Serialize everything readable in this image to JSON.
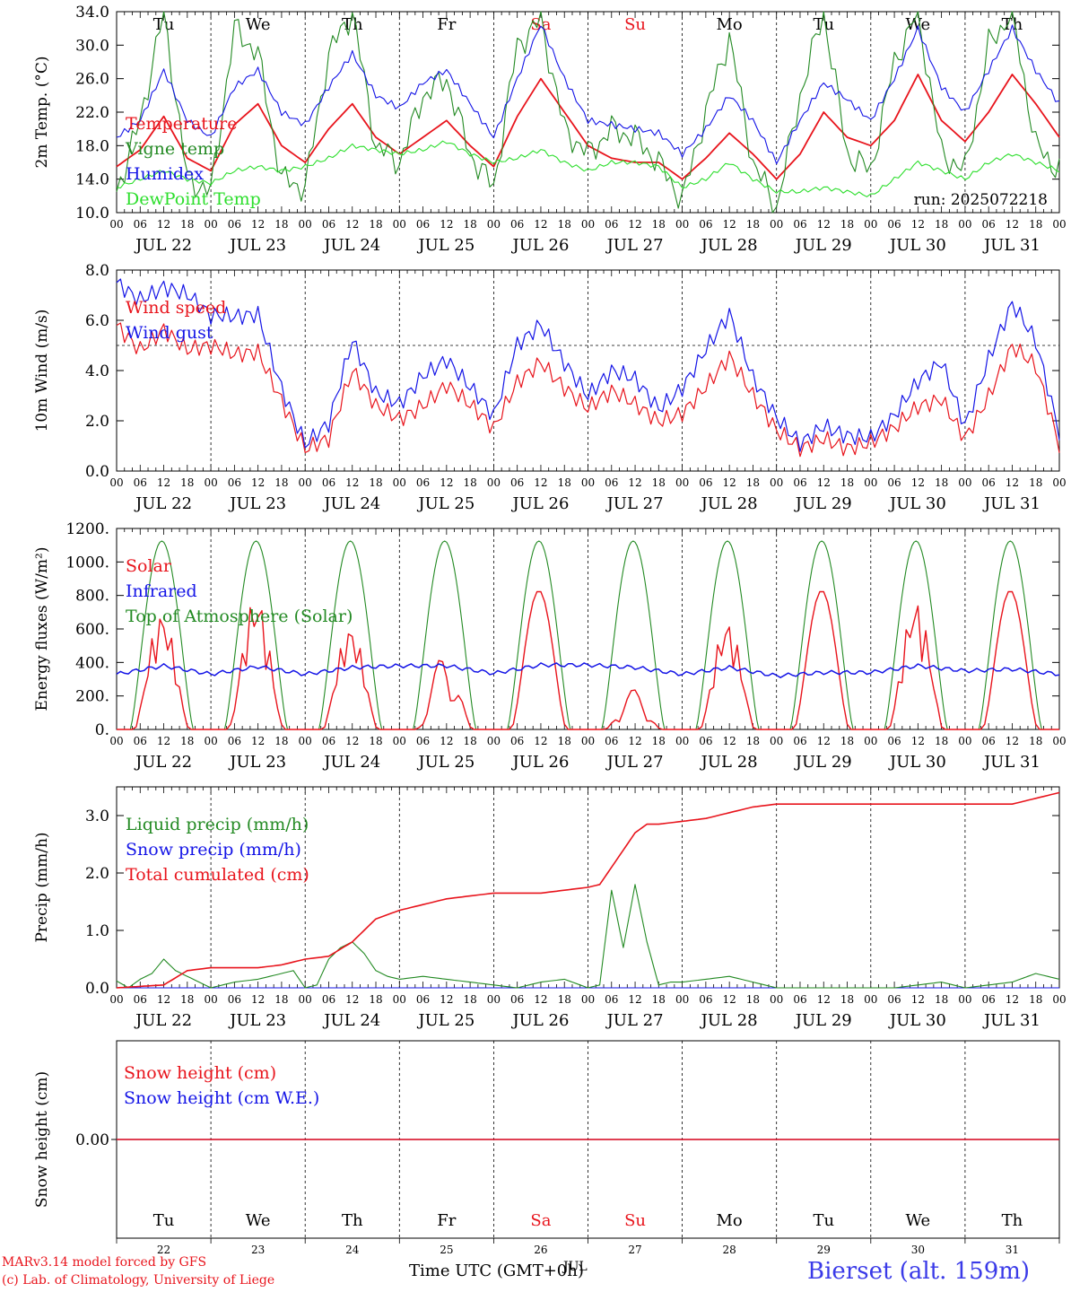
{
  "colors": {
    "red": "#e8141c",
    "darkgreen": "#238a23",
    "blue": "#1414e6",
    "lightgreen": "#2cde2c",
    "black": "#000000",
    "station": "#3a3ae8"
  },
  "header": {
    "run": "run: 2025072218"
  },
  "footer": {
    "model": "MARv3.14 model forced by GFS",
    "copyright": "(c) Lab. of Climatology, University of Liege",
    "time_label": "Time UTC (GMT+0h)",
    "month_overlap": "JUL",
    "station": "Bierset (alt. 159m)"
  },
  "days": {
    "weekday_labels": [
      "Tu",
      "We",
      "Th",
      "Fr",
      "Sa",
      "Su",
      "Mo",
      "Tu",
      "We",
      "Th"
    ],
    "weekend_flags": [
      false,
      false,
      false,
      false,
      true,
      true,
      false,
      false,
      false,
      false
    ],
    "date_labels": [
      "JUL 22",
      "JUL 23",
      "JUL 24",
      "JUL 25",
      "JUL 26",
      "JUL 27",
      "JUL 28",
      "JUL 29",
      "JUL 30",
      "JUL 31"
    ],
    "day_numbers": [
      "22",
      "23",
      "24",
      "25",
      "26",
      "27",
      "28",
      "29",
      "30",
      "31"
    ],
    "hour_labels": [
      "00",
      "06",
      "12",
      "18"
    ],
    "end_hour_label": "00"
  },
  "chart_data": [
    {
      "type": "line",
      "ylabel": "2m Temp. (°C)",
      "ylim": [
        10.0,
        34.0
      ],
      "yticks": [
        "10.0",
        "14.0",
        "18.0",
        "22.0",
        "26.0",
        "30.0",
        "34.0"
      ],
      "x_unit": "hours since Jul 22 00 UTC",
      "series": [
        {
          "name": "Temperature",
          "color": "red",
          "x": [
            0,
            6,
            12,
            18,
            24,
            30,
            36,
            42,
            48,
            54,
            60,
            66,
            72,
            78,
            84,
            90,
            96,
            102,
            108,
            114,
            120,
            126,
            132,
            138,
            144,
            150,
            156,
            162,
            168,
            174,
            180,
            186,
            192,
            198,
            204,
            210,
            216,
            222,
            228,
            234,
            240
          ],
          "y": [
            15.5,
            17.5,
            21.5,
            16.5,
            15,
            20.5,
            23,
            18,
            16,
            20,
            23,
            19,
            17,
            19,
            21,
            18,
            15.5,
            21.5,
            26,
            22,
            18,
            16.5,
            16,
            16,
            14,
            16.5,
            19.5,
            17,
            14,
            17,
            22,
            19,
            18,
            21,
            26.5,
            21,
            18.5,
            22,
            26.5,
            23,
            19
          ]
        },
        {
          "name": "Vigne temp",
          "color": "darkgreen",
          "x": [
            0,
            6,
            12,
            18,
            24,
            30,
            36,
            42,
            48,
            54,
            60,
            66,
            72,
            78,
            84,
            90,
            96,
            102,
            108,
            114,
            120,
            126,
            132,
            138,
            144,
            150,
            156,
            162,
            168,
            174,
            180,
            186,
            192,
            198,
            204,
            210,
            216,
            222,
            228,
            234,
            240
          ],
          "y": [
            12.5,
            21,
            34,
            14,
            12.5,
            32,
            29,
            14,
            13,
            29,
            34,
            18,
            16,
            24,
            26,
            17,
            13,
            30,
            33,
            20,
            17,
            20,
            19,
            16,
            11.5,
            22,
            31,
            16,
            10.5,
            24,
            34,
            17,
            15,
            28,
            34,
            17,
            15,
            30,
            34,
            18,
            15
          ]
        },
        {
          "name": "Humidex",
          "color": "blue",
          "x": [
            0,
            6,
            12,
            18,
            24,
            30,
            36,
            42,
            48,
            54,
            60,
            66,
            72,
            78,
            84,
            90,
            96,
            102,
            108,
            114,
            120,
            126,
            132,
            138,
            144,
            150,
            156,
            162,
            168,
            174,
            180,
            186,
            192,
            198,
            204,
            210,
            216,
            222,
            228,
            234,
            240
          ],
          "y": [
            19,
            21,
            27,
            21,
            19,
            25,
            27,
            22,
            20.5,
            25,
            29,
            24,
            22.5,
            25.5,
            27,
            23,
            19,
            26,
            32.5,
            26,
            21,
            20.5,
            20,
            19.5,
            17,
            20,
            24,
            21,
            16,
            21,
            25.5,
            23.5,
            21,
            26,
            32,
            25,
            22,
            27,
            32,
            27,
            23
          ]
        },
        {
          "name": "DewPoint Temp",
          "color": "lightgreen",
          "x": [
            0,
            6,
            12,
            18,
            24,
            30,
            36,
            42,
            48,
            54,
            60,
            66,
            72,
            78,
            84,
            90,
            96,
            102,
            108,
            114,
            120,
            126,
            132,
            138,
            144,
            150,
            156,
            162,
            168,
            174,
            180,
            186,
            192,
            198,
            204,
            210,
            216,
            222,
            228,
            234,
            240
          ],
          "y": [
            13,
            14,
            15,
            14,
            13.5,
            15,
            15.5,
            15,
            15.5,
            16.5,
            18,
            17.5,
            17,
            17.5,
            18.5,
            17,
            16,
            16.5,
            17.5,
            16,
            15,
            16,
            16,
            15.5,
            13,
            14,
            16,
            14,
            12.5,
            12.5,
            13,
            12.5,
            12,
            14,
            16,
            15,
            14,
            16,
            17,
            16,
            15
          ]
        }
      ]
    },
    {
      "type": "line",
      "ylabel": "10m Wind (m/s)",
      "ylim": [
        0.0,
        8.0
      ],
      "yticks": [
        "0.0",
        "2.0",
        "4.0",
        "6.0",
        "8.0"
      ],
      "reference_line": 5.0,
      "x_unit": "hours since Jul 22 00 UTC",
      "series": [
        {
          "name": "Wind speed",
          "color": "red",
          "x": [
            0,
            6,
            12,
            18,
            24,
            30,
            36,
            42,
            48,
            54,
            60,
            66,
            72,
            78,
            84,
            90,
            96,
            102,
            108,
            114,
            120,
            126,
            132,
            138,
            144,
            150,
            156,
            162,
            168,
            174,
            180,
            186,
            192,
            198,
            204,
            210,
            216,
            222,
            228,
            234,
            240
          ],
          "y": [
            5.8,
            5,
            5.8,
            4.8,
            4.8,
            4.5,
            4.8,
            3,
            1,
            1.2,
            3.8,
            2.5,
            2.2,
            2.8,
            3.5,
            2.5,
            1.5,
            3.5,
            4.5,
            3.5,
            2.5,
            3,
            2.5,
            2,
            2.5,
            3.5,
            4.5,
            2.8,
            1.5,
            1,
            1.5,
            1,
            1,
            1.5,
            2.5,
            3,
            1.5,
            3,
            4.8,
            4,
            1
          ]
        },
        {
          "name": "Wind gust",
          "color": "blue",
          "x": [
            0,
            6,
            12,
            18,
            24,
            30,
            36,
            42,
            48,
            54,
            60,
            66,
            72,
            78,
            84,
            90,
            96,
            102,
            108,
            114,
            120,
            126,
            132,
            138,
            144,
            150,
            156,
            162,
            168,
            174,
            180,
            186,
            192,
            198,
            204,
            210,
            216,
            222,
            228,
            234,
            240
          ],
          "y": [
            7.5,
            7,
            7.5,
            7,
            6,
            6,
            6.3,
            3.5,
            1.2,
            1.8,
            5,
            3,
            2.8,
            4,
            4.5,
            3.2,
            2,
            5,
            6,
            4.5,
            3,
            3.8,
            3.5,
            2.5,
            3.5,
            5,
            6.2,
            3.5,
            2,
            1.2,
            2,
            1.5,
            1.2,
            2,
            3.5,
            4.5,
            2,
            4.5,
            6.5,
            5,
            1.5
          ]
        }
      ]
    },
    {
      "type": "line",
      "ylabel": "Energy fluxes (W/m²)",
      "ylim": [
        0,
        1200
      ],
      "yticks": [
        "0.",
        "200.",
        "400.",
        "600.",
        "800.",
        "1000.",
        "1200."
      ],
      "x_unit": "hours since Jul 22 00 UTC",
      "series": [
        {
          "name": "Solar",
          "color": "red",
          "daily_peaks": [
            700,
            800,
            620,
            450,
            830,
            240,
            650,
            830,
            770,
            830
          ],
          "daily_flags": [
            "broken",
            "broken",
            "broken",
            "spiky",
            "smooth",
            "spiky",
            "broken",
            "smooth",
            "broken",
            "smooth"
          ]
        },
        {
          "name": "Infrared",
          "color": "blue",
          "x": [
            0,
            12,
            24,
            36,
            48,
            60,
            72,
            84,
            96,
            108,
            120,
            132,
            144,
            156,
            168,
            180,
            192,
            204,
            216,
            228,
            240
          ],
          "y": [
            330,
            380,
            330,
            375,
            330,
            370,
            380,
            380,
            335,
            385,
            385,
            370,
            330,
            370,
            320,
            340,
            340,
            380,
            350,
            360,
            330
          ]
        },
        {
          "name": "Top of Atmosphere (Solar)",
          "color": "darkgreen",
          "daily_peak": 1125
        }
      ]
    },
    {
      "type": "line",
      "ylabel": "Precip (mm/h)",
      "ylim": [
        0.0,
        3.5
      ],
      "yticks": [
        "0.0",
        "1.0",
        "2.0",
        "3.0"
      ],
      "x_unit": "hours since Jul 22 00 UTC",
      "series": [
        {
          "name": "Liquid precip (mm/h)",
          "color": "darkgreen",
          "x": [
            0,
            3,
            6,
            9,
            12,
            15,
            18,
            21,
            24,
            30,
            36,
            42,
            45,
            48,
            51,
            54,
            57,
            60,
            63,
            66,
            69,
            72,
            78,
            84,
            90,
            96,
            102,
            108,
            114,
            120,
            123,
            126,
            129,
            132,
            135,
            138,
            141,
            144,
            150,
            156,
            162,
            168,
            174,
            180,
            186,
            192,
            198,
            204,
            210,
            216,
            222,
            228,
            234,
            240
          ],
          "y": [
            0.12,
            0,
            0.15,
            0.25,
            0.5,
            0.3,
            0.2,
            0.1,
            0,
            0.1,
            0.15,
            0.25,
            0.3,
            0,
            0.05,
            0.5,
            0.7,
            0.8,
            0.6,
            0.3,
            0.2,
            0.15,
            0.2,
            0.15,
            0.1,
            0.05,
            0,
            0.1,
            0.15,
            0,
            0.05,
            1.7,
            0.7,
            1.8,
            0.8,
            0.05,
            0.1,
            0.1,
            0.15,
            0.2,
            0.1,
            0,
            0,
            0,
            0,
            0,
            0,
            0.05,
            0.1,
            0,
            0.05,
            0.1,
            0.25,
            0.15
          ]
        },
        {
          "name": "Snow precip (mm/h)",
          "color": "blue",
          "x": [
            0,
            240
          ],
          "y": [
            0,
            0
          ]
        },
        {
          "name": "Total cumulated (cm)",
          "color": "red",
          "x": [
            0,
            12,
            18,
            24,
            36,
            42,
            48,
            54,
            60,
            66,
            72,
            78,
            84,
            90,
            96,
            102,
            108,
            114,
            120,
            123,
            126,
            129,
            132,
            135,
            138,
            144,
            150,
            156,
            162,
            168,
            180,
            192,
            198,
            204,
            210,
            216,
            228,
            234,
            240
          ],
          "y": [
            0,
            0.05,
            0.3,
            0.35,
            0.35,
            0.4,
            0.5,
            0.55,
            0.8,
            1.2,
            1.35,
            1.45,
            1.55,
            1.6,
            1.65,
            1.65,
            1.65,
            1.7,
            1.75,
            1.8,
            2.1,
            2.4,
            2.7,
            2.85,
            2.85,
            2.9,
            2.95,
            3.05,
            3.15,
            3.2,
            3.2,
            3.2,
            3.2,
            3.2,
            3.2,
            3.2,
            3.2,
            3.3,
            3.4
          ]
        }
      ]
    },
    {
      "type": "line",
      "ylabel": "Snow height (cm)",
      "yticks": [
        "0.00"
      ],
      "x_unit": "hours since Jul 22 00 UTC",
      "series": [
        {
          "name": "Snow height (cm)",
          "color": "red",
          "x": [
            0,
            240
          ],
          "y": [
            0,
            0
          ]
        },
        {
          "name": "Snow height (cm W.E.)",
          "color": "blue",
          "x": [
            0,
            240
          ],
          "y": [
            0,
            0
          ]
        }
      ]
    }
  ]
}
